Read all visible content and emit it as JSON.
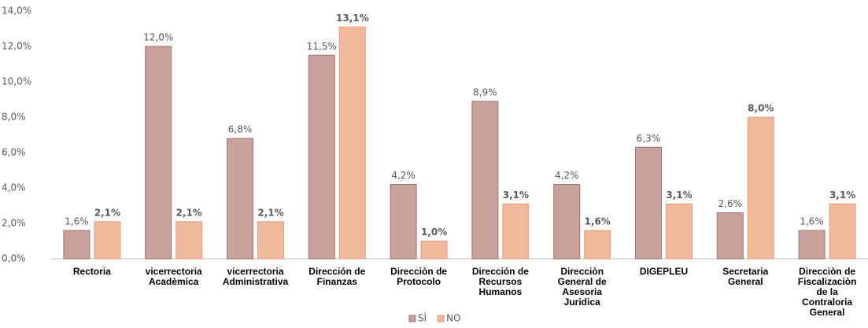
{
  "chart_data": {
    "type": "bar",
    "categories": [
      "Rectoria",
      "vicerrectoria Acadèmica",
      "vicerrectoria Administrativa",
      "Dirección de Finanzas",
      "Direcciòn de Protocolo",
      "Dirección de Recursos Humanos",
      "Direcciòn General de Asesoria Juridica",
      "DIGEPLEU",
      "Secretaria General",
      "Direcciòn de Fiscalizaciòn de la Contraloria General"
    ],
    "series": [
      {
        "name": "SÌ",
        "color": "#c9a19d",
        "values": [
          1.6,
          12.0,
          6.8,
          11.5,
          4.2,
          8.9,
          4.2,
          6.3,
          2.6,
          1.6
        ],
        "value_labels": [
          "1,6%",
          "12,0%",
          "6,8%",
          "11,5%",
          "4,2%",
          "8,9%",
          "4,2%",
          "6,3%",
          "2,6%",
          "1,6%"
        ]
      },
      {
        "name": "NO",
        "color": "#f0b99b",
        "values": [
          2.1,
          2.1,
          2.1,
          13.1,
          1.0,
          3.1,
          1.6,
          3.1,
          8.0,
          3.1
        ],
        "value_labels": [
          "2,1%",
          "2,1%",
          "2,1%",
          "13,1%",
          "1,0%",
          "3,1%",
          "1,6%",
          "3,1%",
          "8,0%",
          "3,1%"
        ]
      }
    ],
    "ylim": [
      0,
      14
    ],
    "yticks": [
      {
        "value": 0,
        "label": "0,0%"
      },
      {
        "value": 2,
        "label": "2,0%"
      },
      {
        "value": 4,
        "label": "4,0%"
      },
      {
        "value": 6,
        "label": "6,0%"
      },
      {
        "value": 8,
        "label": "8,0%"
      },
      {
        "value": 10,
        "label": "10,0%"
      },
      {
        "value": 12,
        "label": "12,0%"
      },
      {
        "value": 14,
        "label": "14,0%"
      }
    ],
    "grid": false,
    "legend": "bottom"
  }
}
